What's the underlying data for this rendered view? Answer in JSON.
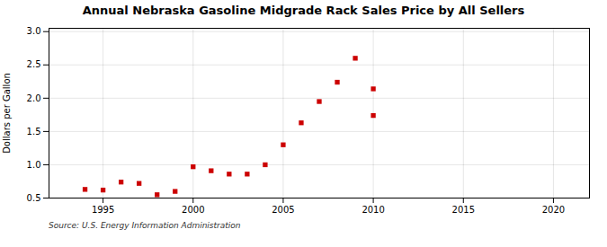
{
  "chart_data": {
    "type": "scatter",
    "title": "Annual Nebraska Gasoline Midgrade Rack Sales Price by All Sellers",
    "ylabel": "Dollars per Gallon",
    "annotations": [
      "Source: U.S. Energy Information Administration"
    ],
    "x": [
      1994,
      1995,
      1996,
      1997,
      1998,
      1999,
      2000,
      2001,
      2002,
      2003,
      2004,
      2005,
      2006,
      2007,
      2008,
      2009,
      2010,
      2010
    ],
    "values": [
      0.63,
      0.62,
      0.74,
      0.72,
      0.55,
      0.6,
      0.97,
      0.91,
      0.86,
      0.86,
      1.0,
      1.3,
      1.63,
      1.95,
      2.24,
      2.6,
      1.74,
      2.14
    ],
    "color": "#cc0000",
    "marker": "square",
    "xlim": [
      1992,
      2022
    ],
    "xticks": [
      1995,
      2000,
      2005,
      2010,
      2015,
      2020
    ],
    "ylim": [
      0.5,
      3.05
    ],
    "yticks": [
      0.5,
      {
        "value": 1.0,
        "label": "1.0"
      },
      1.5,
      {
        "value": 2.0,
        "label": "2.0"
      },
      2.5,
      {
        "value": 3.0,
        "label": "3.0"
      }
    ],
    "grid": true
  }
}
